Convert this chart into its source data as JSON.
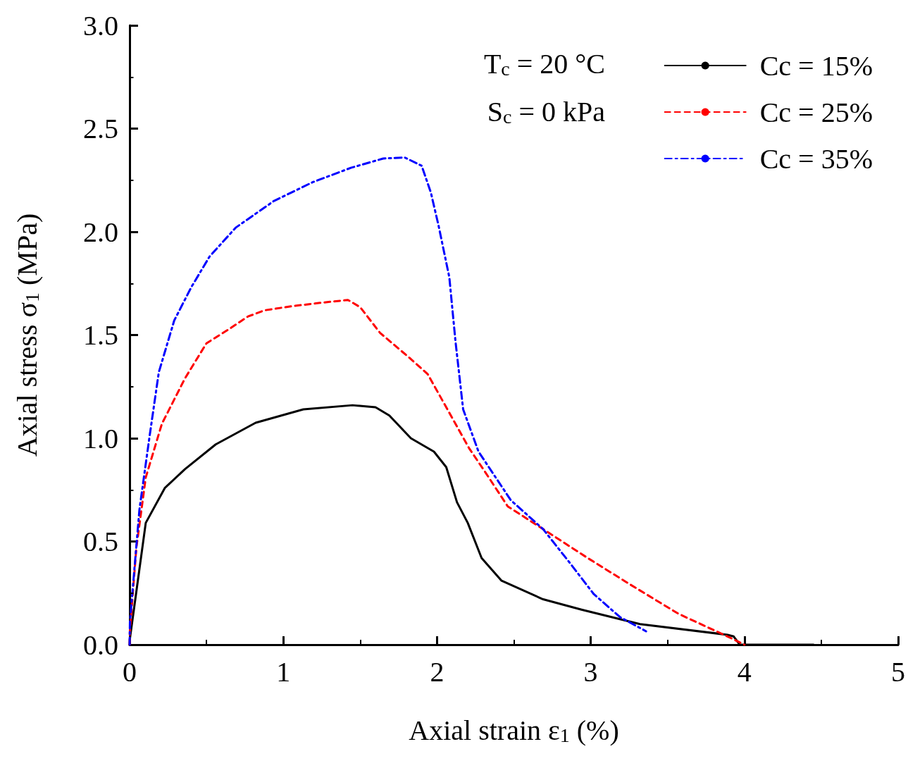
{
  "chart_data": {
    "type": "line",
    "xlabel": "Axial strain ε$_{1}$ (%)",
    "ylabel": "Axial stress σ$_{1}$ (MPa)",
    "annotations": [
      "T$_{c}$ = 20 °C",
      "S$_{c}$ = 0 kPa"
    ],
    "xlim": [
      0,
      5
    ],
    "xticks": [
      0,
      1,
      2,
      3,
      4,
      5
    ],
    "ylim": [
      0,
      3.0
    ],
    "yticks": [
      {
        "value": 0,
        "label": "0.0"
      },
      0.5,
      {
        "value": 1,
        "label": "1.0"
      },
      1.5,
      {
        "value": 2,
        "label": "2.0"
      },
      2.5,
      {
        "value": 3,
        "label": "3.0"
      }
    ],
    "grid": false,
    "legend": "top right",
    "marker": "none",
    "series": [
      {
        "name": "Cc = 15%",
        "color": "#000000",
        "line_style": "solid",
        "x": [
          0,
          0.002,
          0.105,
          0.23,
          0.36,
          0.56,
          0.82,
          1.13,
          1.45,
          1.6,
          1.69,
          1.83,
          1.98,
          2.06,
          2.13,
          2.2,
          2.29,
          2.42,
          2.69,
          2.94,
          3.32,
          3.89,
          3.93,
          3.97,
          4.2,
          4.45
        ],
        "values": [
          0,
          0.03,
          0.59,
          0.76,
          0.85,
          0.97,
          1.075,
          1.14,
          1.16,
          1.15,
          1.11,
          1.0,
          0.935,
          0.86,
          0.69,
          0.59,
          0.42,
          0.31,
          0.22,
          0.17,
          0.1,
          0.048,
          0.04,
          0.0,
          0.0,
          0.0
        ]
      },
      {
        "name": "Cc = 25%",
        "color": "#ff0000",
        "line_style": "dashed",
        "x": [
          0,
          0.002,
          0.044,
          0.105,
          0.21,
          0.36,
          0.5,
          0.65,
          0.77,
          0.88,
          1.06,
          1.23,
          1.42,
          1.5,
          1.63,
          1.82,
          1.94,
          2.06,
          2.21,
          2.31,
          2.46,
          2.69,
          2.98,
          3.26,
          3.57,
          3.89,
          4.0
        ],
        "values": [
          0,
          0.07,
          0.47,
          0.81,
          1.07,
          1.29,
          1.46,
          1.53,
          1.59,
          1.62,
          1.64,
          1.655,
          1.67,
          1.635,
          1.51,
          1.39,
          1.31,
          1.15,
          0.95,
          0.84,
          0.67,
          0.56,
          0.42,
          0.29,
          0.15,
          0.04,
          0.0
        ]
      },
      {
        "name": "Cc = 35%",
        "color": "#0000ff",
        "line_style": "dashdot",
        "x": [
          0,
          0.002,
          0.064,
          0.13,
          0.19,
          0.29,
          0.4,
          0.52,
          0.69,
          0.94,
          1.19,
          1.44,
          1.65,
          1.79,
          1.9,
          1.96,
          2.01,
          2.08,
          2.12,
          2.17,
          2.27,
          2.48,
          2.69,
          2.86,
          3.02,
          3.19,
          3.36
        ],
        "values": [
          0,
          0.11,
          0.655,
          1.01,
          1.32,
          1.57,
          1.73,
          1.88,
          2.02,
          2.15,
          2.24,
          2.31,
          2.355,
          2.36,
          2.32,
          2.19,
          2.03,
          1.78,
          1.47,
          1.14,
          0.935,
          0.7,
          0.56,
          0.4,
          0.245,
          0.134,
          0.065
        ]
      }
    ]
  }
}
